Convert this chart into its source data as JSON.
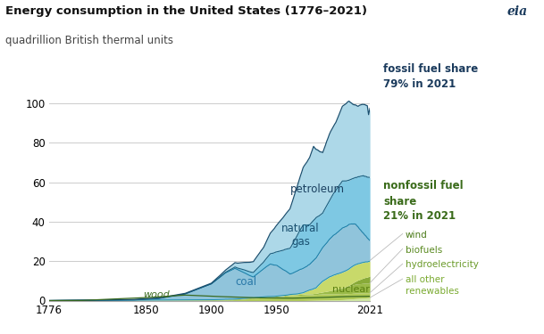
{
  "title": "Energy consumption in the United States (1776–2021)",
  "subtitle": "quadrillion British thermal units",
  "xlim": [
    1776,
    2021
  ],
  "ylim": [
    0,
    105
  ],
  "yticks": [
    0,
    20,
    40,
    60,
    80,
    100
  ],
  "xticks": [
    1776,
    1850,
    1900,
    1950,
    2021
  ],
  "bg_color": "#ffffff",
  "grid_color": "#cccccc",
  "fossil_label": "fossil fuel share\n79% in 2021",
  "nonfossil_label": "nonfossil fuel\nshare\n21% in 2021",
  "fossil_label_color": "#1a3a5c",
  "nonfossil_label_color": "#3a6b1a",
  "fill_colors": {
    "petroleum": "#add8e8",
    "natural_gas": "#7ec8e3",
    "coal": "#90c4db",
    "nuclear": "#c8d96a",
    "hydro": "#b0ca58",
    "biofuels": "#9aba48",
    "wind": "#88aa38",
    "other_renew": "#d0e8a0"
  },
  "line_colors": {
    "total_top": "#1a5070",
    "nat_gas_top": "#1a6080",
    "coal_top": "#2080a8",
    "nonfossil_top": "#2090b0",
    "wood": "#3a6a20"
  },
  "label_colors": {
    "wood": "#3a6a20",
    "coal": "#2878a8",
    "natural_gas": "#1a5070",
    "petroleum": "#1a4060",
    "nuclear": "#5a8010"
  },
  "right_label_colors": {
    "wind": "#4a7a18",
    "biofuels": "#5a8a20",
    "hydroelectricity": "#6a9a28",
    "all_other": "#7aaa30"
  }
}
